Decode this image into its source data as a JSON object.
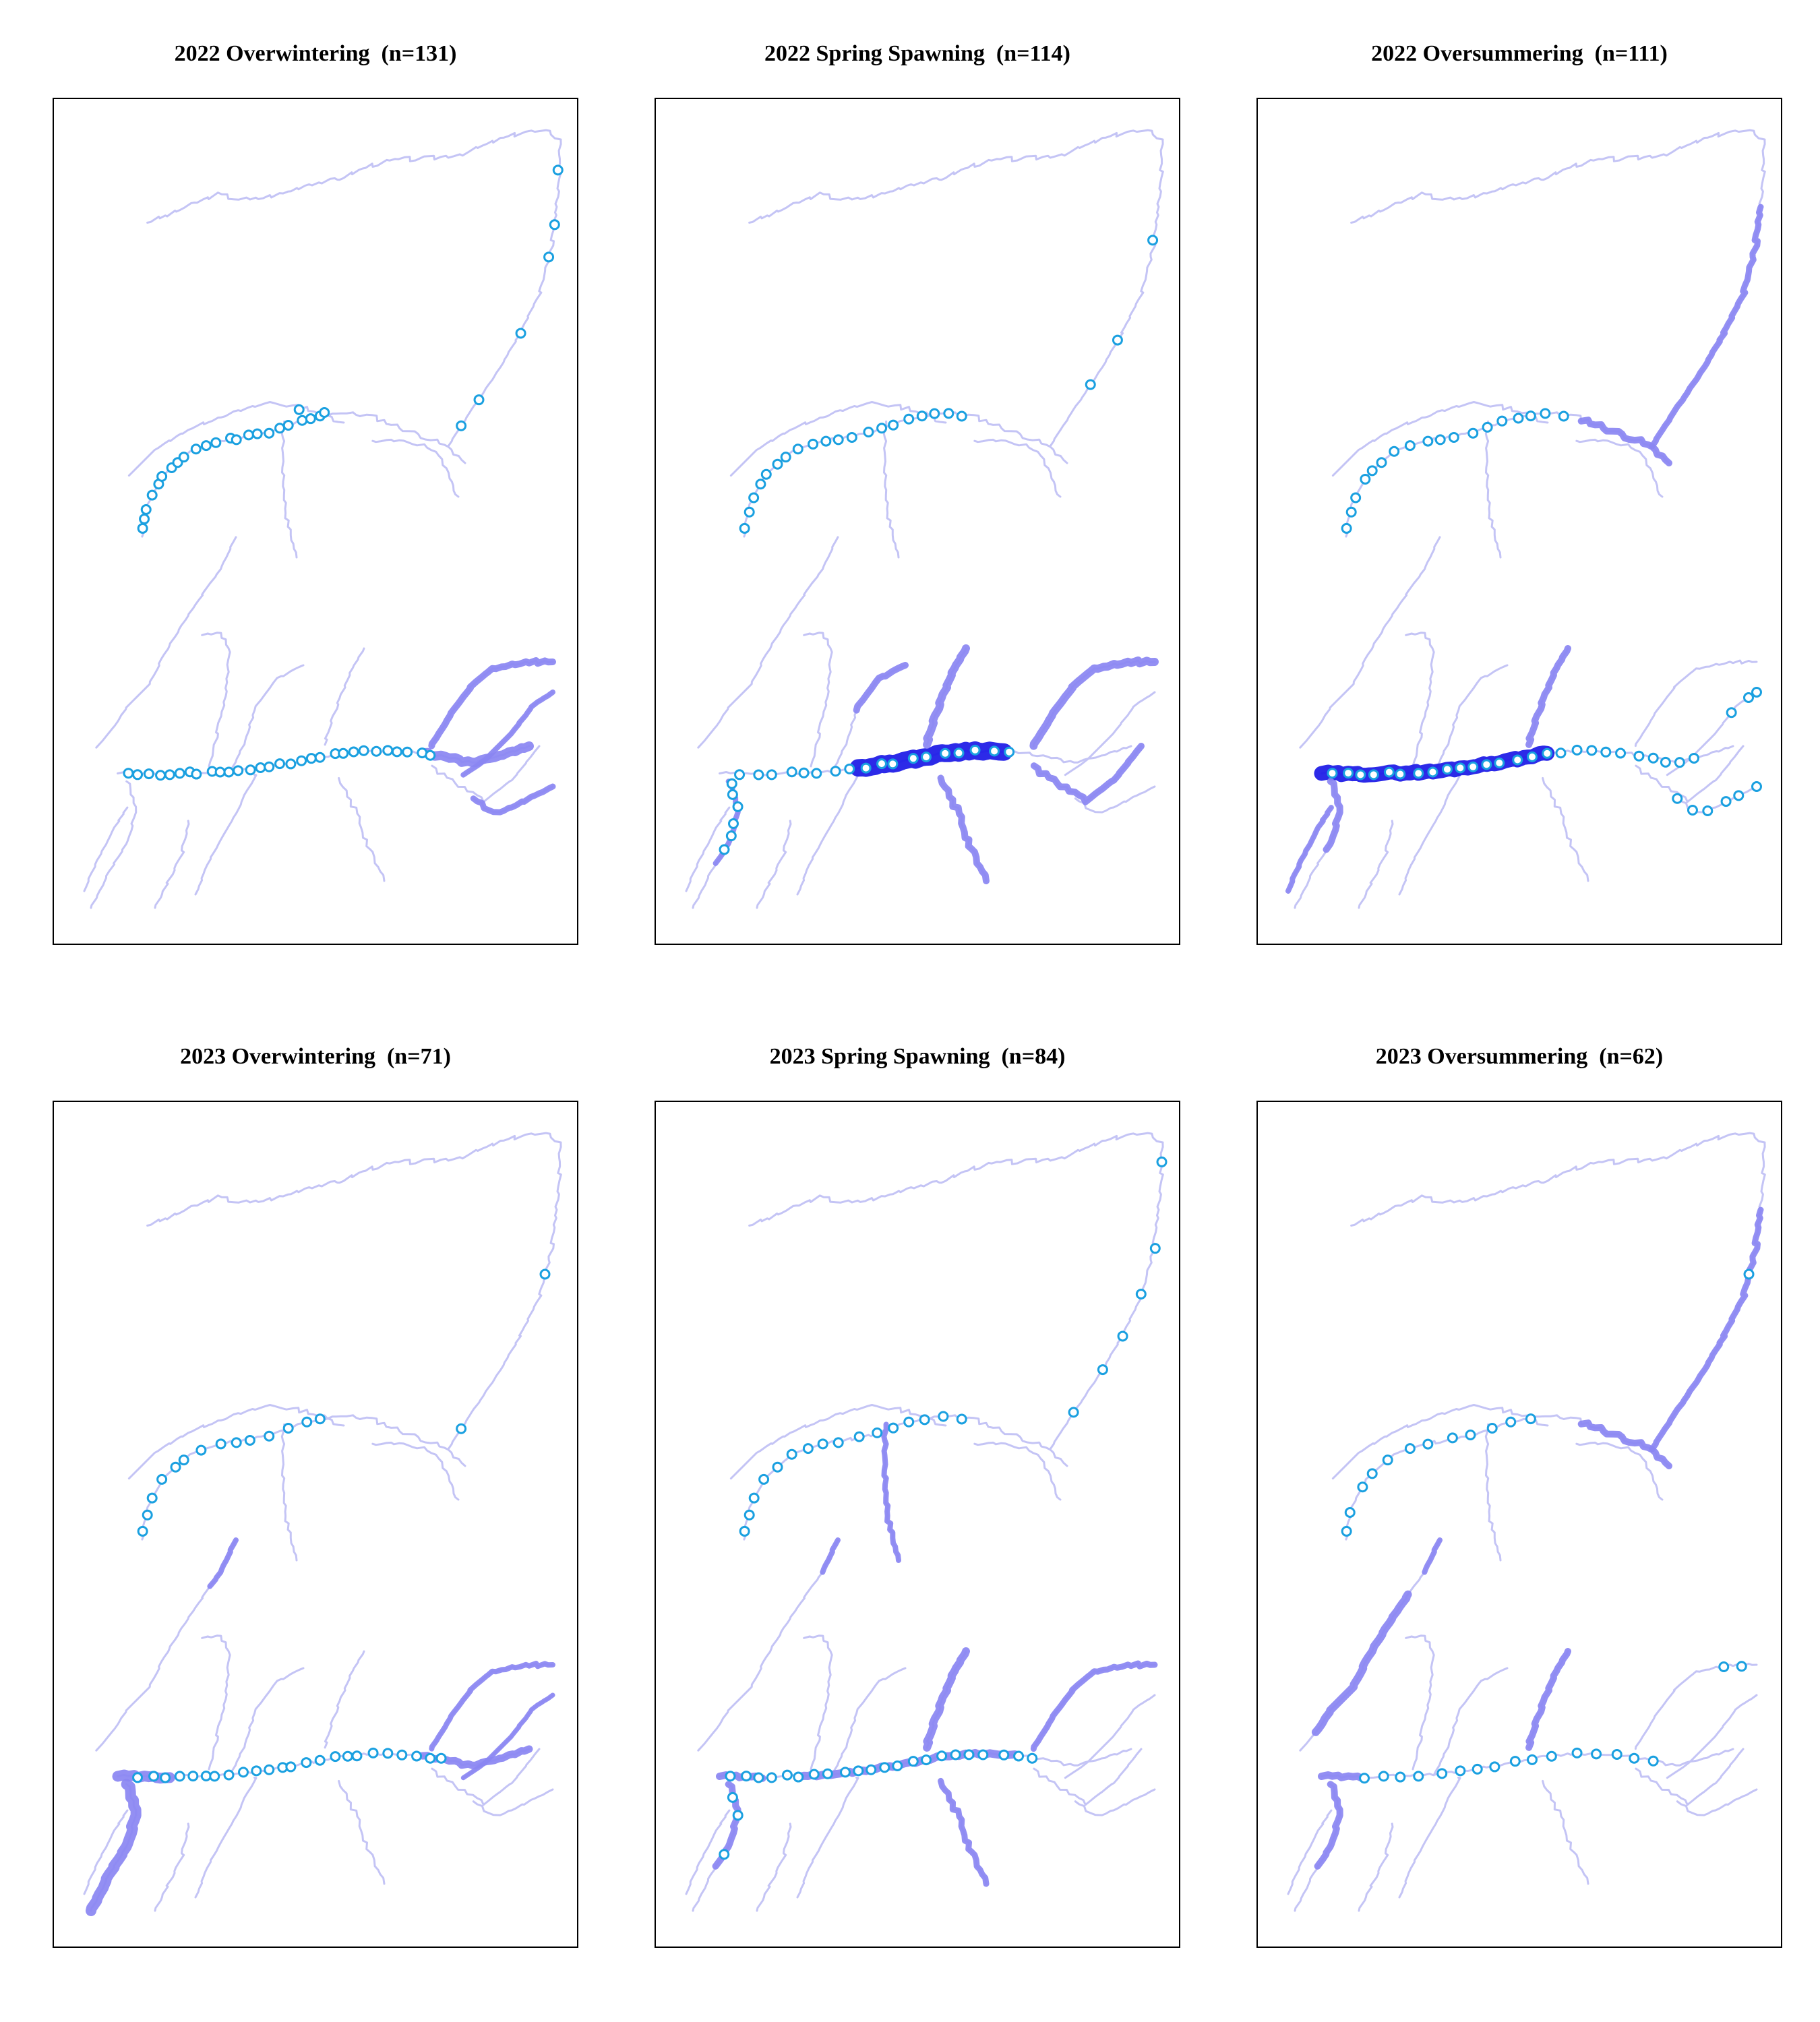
{
  "figure": {
    "panels": [
      {
        "title": "2022 Overwintering  (n=131)",
        "highlights": [
          "east_arm"
        ],
        "points": "2022_ow"
      },
      {
        "title": "2022 Spring Spawning  (n=114)",
        "highlights": [
          "junction_dark"
        ],
        "points": "2022_sp"
      },
      {
        "title": "2022 Oversummering  (n=111)",
        "highlights": [
          "main_stem",
          "west_mid_dark"
        ],
        "points": "2022_os"
      },
      {
        "title": "2023 Overwintering  (n=71)",
        "highlights": [
          "sw_bend",
          "east_arm_light"
        ],
        "points": "2023_ow"
      },
      {
        "title": "2023 Spring Spawning  (n=84)",
        "highlights": [
          "sw_bend_light",
          "junction_mid"
        ],
        "points": "2023_sp"
      },
      {
        "title": "2023 Oversummering  (n=62)",
        "highlights": [
          "main_stem",
          "west_arc",
          "sw_bend_light"
        ],
        "points": "2023_os"
      }
    ],
    "colors": {
      "river_light": "#c4c4f5",
      "river_mid": "#8a86f2",
      "river_dark": "#1a18e6",
      "marker_stroke": "#1aa0e0",
      "marker_fill": "#ffffff",
      "frame": "#000000"
    }
  }
}
